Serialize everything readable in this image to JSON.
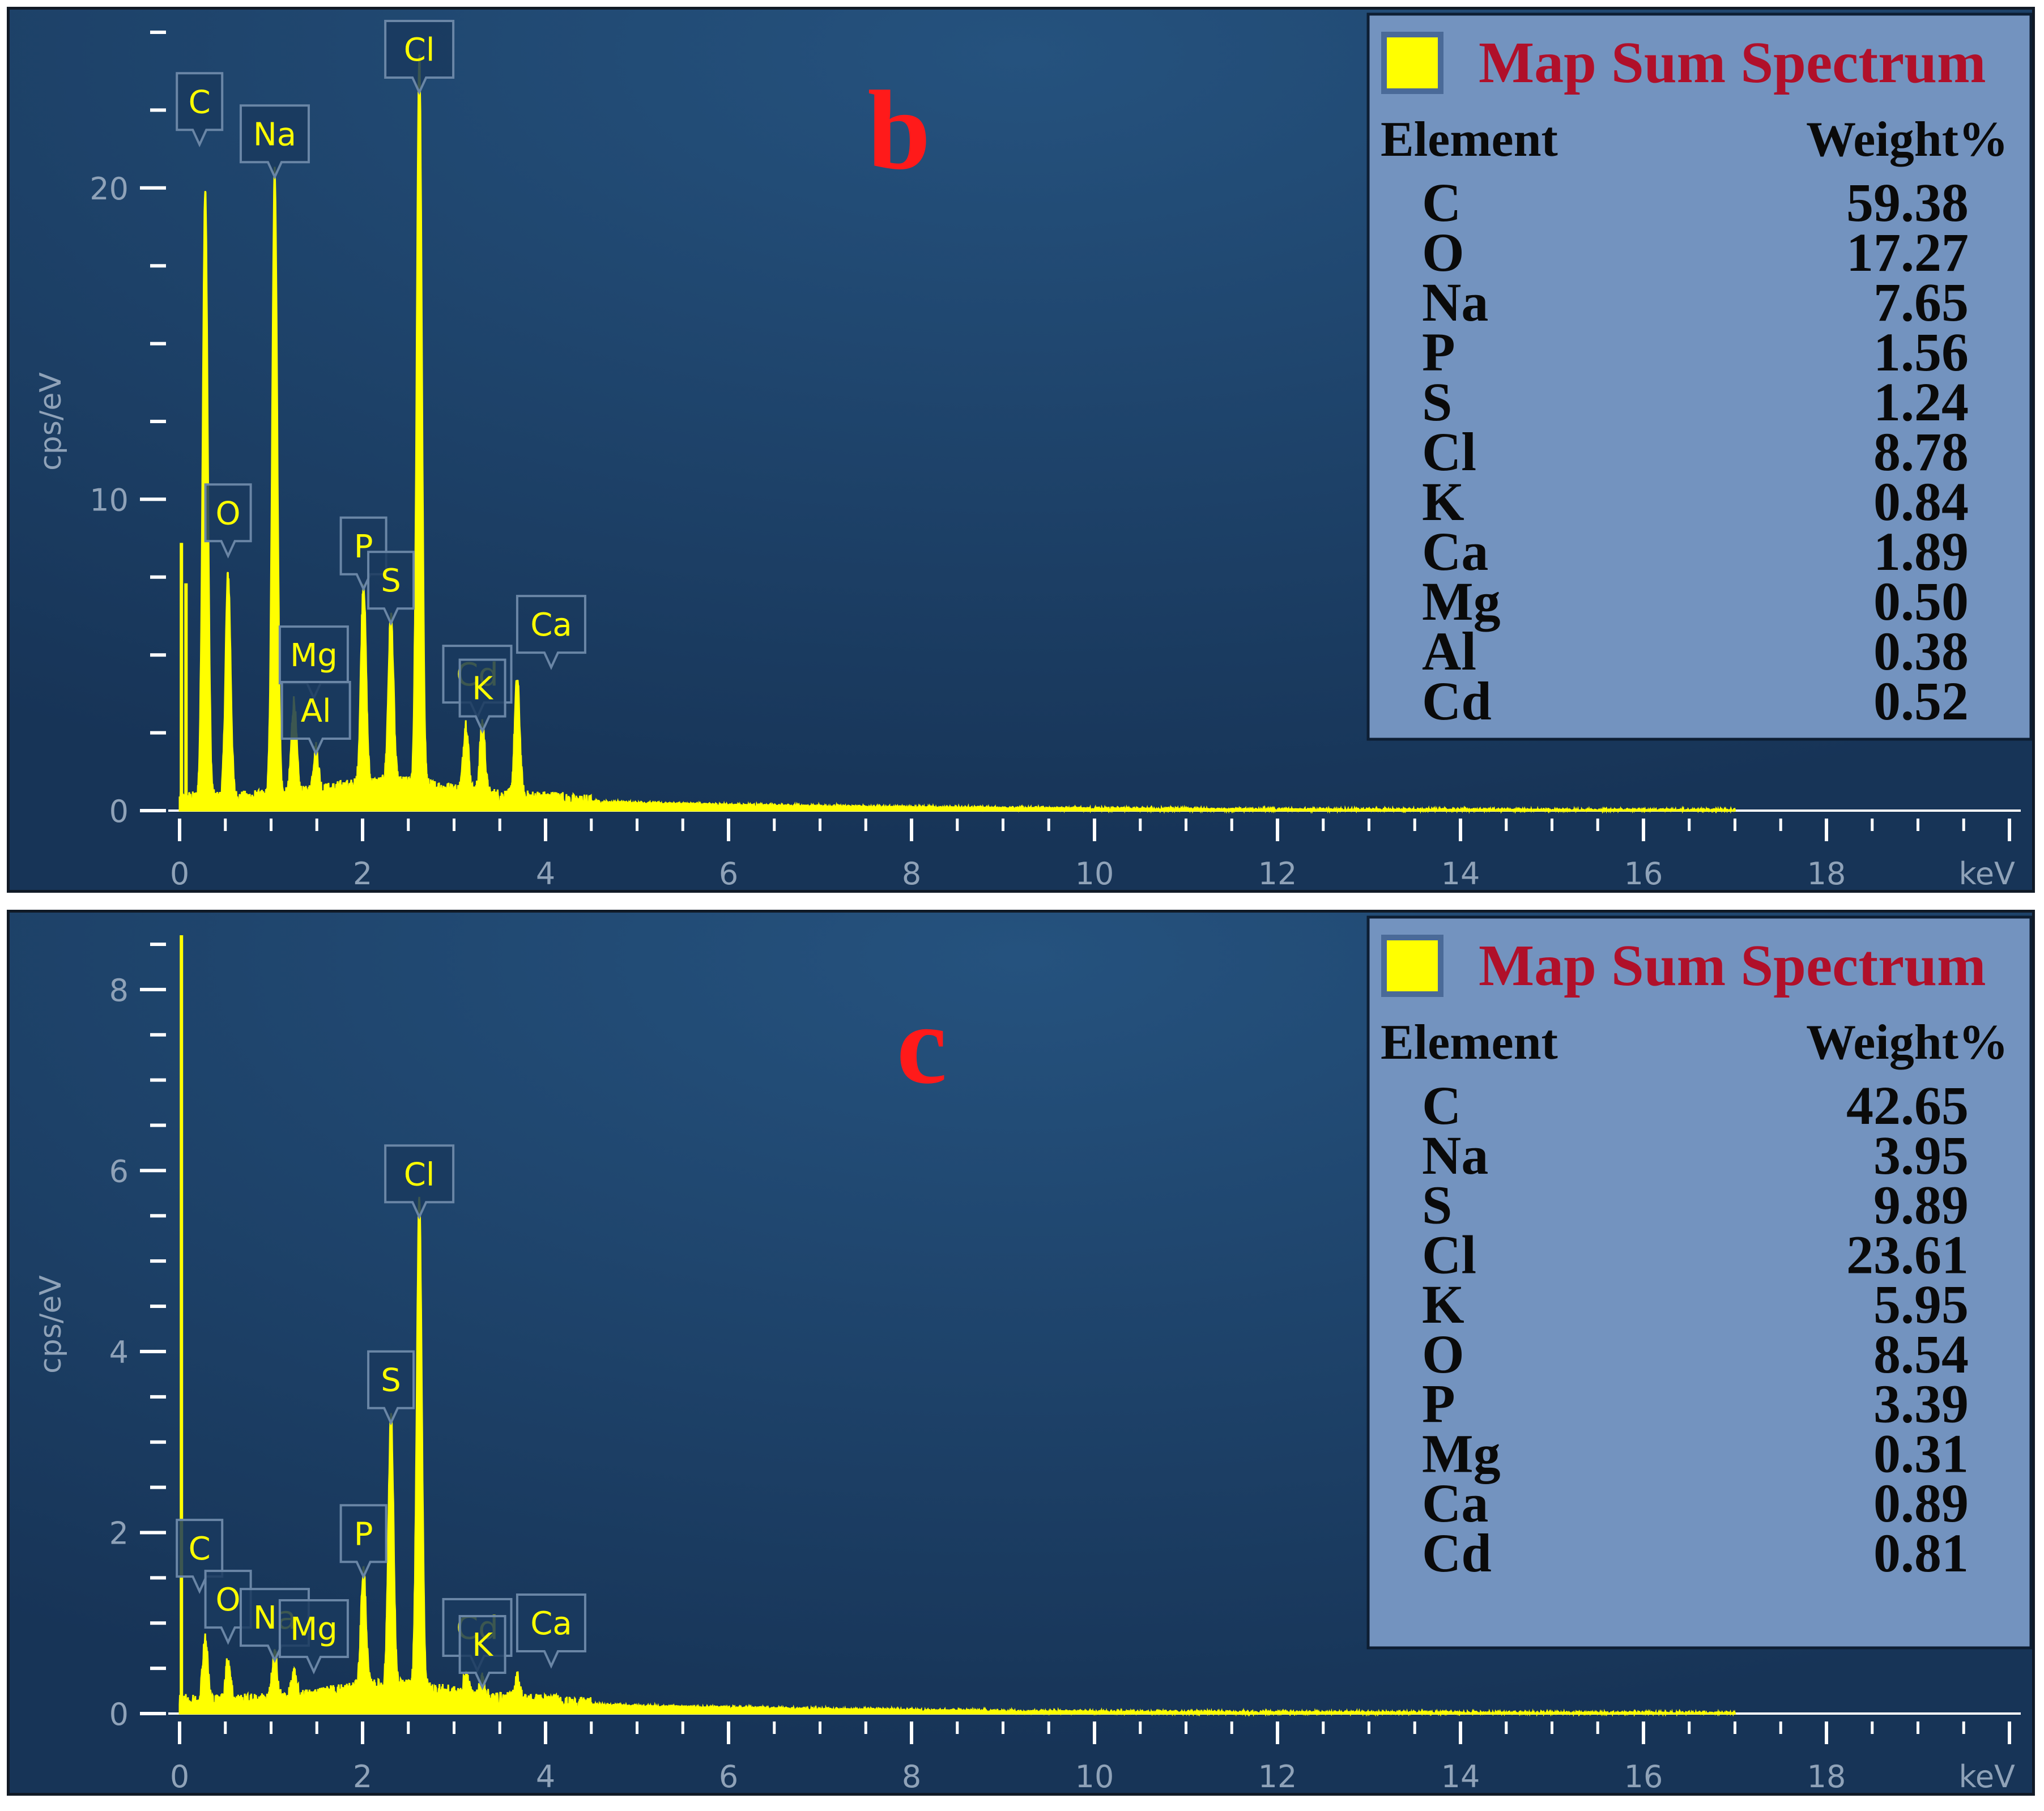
{
  "colors": {
    "spectrum": "#ffff00",
    "background_light": "#25527e",
    "background_dark": "#173457",
    "legend_bg": "#7393bf",
    "panel_letter": "#ff1a1a",
    "legend_title": "#b0102a"
  },
  "chart_data": [
    {
      "type": "line",
      "panel_label": "b",
      "ylabel": "cps/eV",
      "xunit": "keV",
      "xlim": [
        0,
        20
      ],
      "ylim": [
        0,
        25
      ],
      "x_ticks": [
        0,
        2,
        4,
        6,
        8,
        10,
        12,
        14,
        16,
        18
      ],
      "y_ticks": [
        0,
        10,
        20
      ],
      "legend": {
        "title": "Map Sum Spectrum",
        "header": [
          "Element",
          "Weight%"
        ],
        "rows": [
          [
            "C",
            "59.38"
          ],
          [
            "O",
            "17.27"
          ],
          [
            "Na",
            "7.65"
          ],
          [
            "P",
            "1.56"
          ],
          [
            "S",
            "1.24"
          ],
          [
            "Cl",
            "8.78"
          ],
          [
            "K",
            "0.84"
          ],
          [
            "Ca",
            "1.89"
          ],
          [
            "Mg",
            "0.50"
          ],
          [
            "Al",
            "0.38"
          ],
          [
            "Cd",
            "0.52"
          ]
        ]
      },
      "peaks": [
        {
          "label": "C",
          "x": 0.28,
          "y": 19.5
        },
        {
          "label": "O",
          "x": 0.53,
          "y": 7.2
        },
        {
          "label": "Na",
          "x": 1.04,
          "y": 20.1
        },
        {
          "label": "Mg",
          "x": 1.25,
          "y": 3.0
        },
        {
          "label": "Al",
          "x": 1.49,
          "y": 1.4
        },
        {
          "label": "P",
          "x": 2.01,
          "y": 6.5
        },
        {
          "label": "S",
          "x": 2.31,
          "y": 5.4
        },
        {
          "label": "Cl",
          "x": 2.62,
          "y": 23.5
        },
        {
          "label": "Cd",
          "x": 3.13,
          "y": 2.2
        },
        {
          "label": "K",
          "x": 3.31,
          "y": 2.3
        },
        {
          "label": "Ca",
          "x": 3.69,
          "y": 3.8
        }
      ],
      "extra_lines": [
        {
          "x": 0.02,
          "y": 8.6
        },
        {
          "x": 0.07,
          "y": 7.3
        }
      ]
    },
    {
      "type": "line",
      "panel_label": "c",
      "ylabel": "cps/eV",
      "xunit": "keV",
      "xlim": [
        0,
        20
      ],
      "ylim": [
        0,
        8.6
      ],
      "x_ticks": [
        0,
        2,
        4,
        6,
        8,
        10,
        12,
        14,
        16,
        18
      ],
      "y_ticks": [
        0,
        2,
        4,
        6,
        8
      ],
      "legend": {
        "title": "Map Sum Spectrum",
        "header": [
          "Element",
          "Weight%"
        ],
        "rows": [
          [
            "C",
            "42.65"
          ],
          [
            "Na",
            "3.95"
          ],
          [
            "S",
            "9.89"
          ],
          [
            "Cl",
            "23.61"
          ],
          [
            "K",
            "5.95"
          ],
          [
            "O",
            "8.54"
          ],
          [
            "P",
            "3.39"
          ],
          [
            "Mg",
            "0.31"
          ],
          [
            "Ca",
            "0.89"
          ],
          [
            "Cd",
            "0.81"
          ]
        ]
      },
      "peaks": [
        {
          "label": "C",
          "x": 0.28,
          "y": 0.7
        },
        {
          "label": "O",
          "x": 0.53,
          "y": 0.45
        },
        {
          "label": "Na",
          "x": 1.04,
          "y": 0.5
        },
        {
          "label": "Mg",
          "x": 1.25,
          "y": 0.25
        },
        {
          "label": "P",
          "x": 2.01,
          "y": 1.3
        },
        {
          "label": "S",
          "x": 2.31,
          "y": 3.0
        },
        {
          "label": "Cl",
          "x": 2.62,
          "y": 5.4
        },
        {
          "label": "Cd",
          "x": 3.13,
          "y": 0.2
        },
        {
          "label": "K",
          "x": 3.31,
          "y": 0.2
        },
        {
          "label": "Ca",
          "x": 3.69,
          "y": 0.25
        }
      ],
      "extra_lines": [
        {
          "x": 0.02,
          "y": 8.6
        }
      ]
    }
  ]
}
